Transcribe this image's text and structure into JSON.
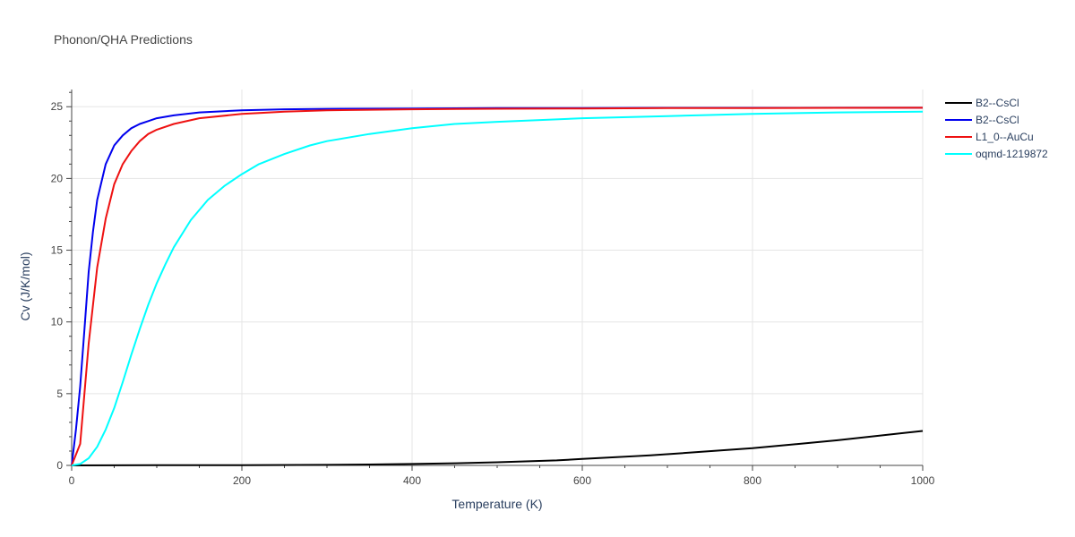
{
  "chart_data": {
    "type": "line",
    "title": "Phonon/QHA Predictions",
    "xlabel": "Temperature (K)",
    "ylabel": "Cv (J/K/mol)",
    "xlim": [
      0,
      1000
    ],
    "ylim": [
      0,
      26.2
    ],
    "x_ticks": [
      0,
      200,
      400,
      600,
      800,
      1000
    ],
    "y_ticks": [
      0,
      5,
      10,
      15,
      20,
      25
    ],
    "grid": true,
    "legend_position": "right",
    "series": [
      {
        "name": "B2--CsCl",
        "color": "#000000",
        "x": [
          0,
          100,
          200,
          300,
          350,
          400,
          450,
          500,
          570,
          600,
          680,
          800,
          900,
          1000
        ],
        "y": [
          0,
          0.01,
          0.02,
          0.04,
          0.06,
          0.1,
          0.15,
          0.22,
          0.35,
          0.45,
          0.7,
          1.2,
          1.75,
          2.4
        ]
      },
      {
        "name": "B2--CsCl",
        "color": "#0000ee",
        "x": [
          0,
          5,
          10,
          15,
          20,
          25,
          30,
          40,
          50,
          60,
          70,
          80,
          90,
          100,
          120,
          150,
          200,
          250,
          300,
          400,
          500,
          600,
          700,
          800,
          900,
          1000
        ],
        "y": [
          0,
          2.5,
          5.5,
          9.5,
          13.5,
          16.3,
          18.5,
          21.0,
          22.3,
          23.0,
          23.5,
          23.8,
          24.0,
          24.2,
          24.4,
          24.6,
          24.75,
          24.82,
          24.85,
          24.88,
          24.9,
          24.91,
          24.92,
          24.92,
          24.93,
          24.93
        ]
      },
      {
        "name": "L1_0--AuCu",
        "color": "#ee1111",
        "x": [
          0,
          10,
          20,
          30,
          40,
          50,
          60,
          70,
          80,
          90,
          100,
          120,
          150,
          200,
          250,
          300,
          400,
          500,
          600,
          700,
          800,
          900,
          1000
        ],
        "y": [
          0,
          1.5,
          8.5,
          13.8,
          17.2,
          19.6,
          21.0,
          21.9,
          22.6,
          23.1,
          23.4,
          23.8,
          24.2,
          24.5,
          24.65,
          24.75,
          24.82,
          24.86,
          24.88,
          24.9,
          24.91,
          24.92,
          24.93
        ]
      },
      {
        "name": "oqmd-1219872",
        "color": "#00ffff",
        "x": [
          0,
          10,
          20,
          30,
          40,
          50,
          60,
          70,
          80,
          90,
          100,
          110,
          120,
          140,
          160,
          180,
          200,
          220,
          250,
          280,
          300,
          350,
          400,
          450,
          500,
          600,
          700,
          800,
          900,
          1000
        ],
        "y": [
          0,
          0.1,
          0.5,
          1.3,
          2.5,
          4.0,
          5.8,
          7.7,
          9.5,
          11.2,
          12.7,
          14.0,
          15.2,
          17.1,
          18.5,
          19.5,
          20.3,
          21.0,
          21.7,
          22.3,
          22.6,
          23.1,
          23.5,
          23.8,
          23.95,
          24.2,
          24.35,
          24.5,
          24.6,
          24.65
        ]
      }
    ]
  }
}
